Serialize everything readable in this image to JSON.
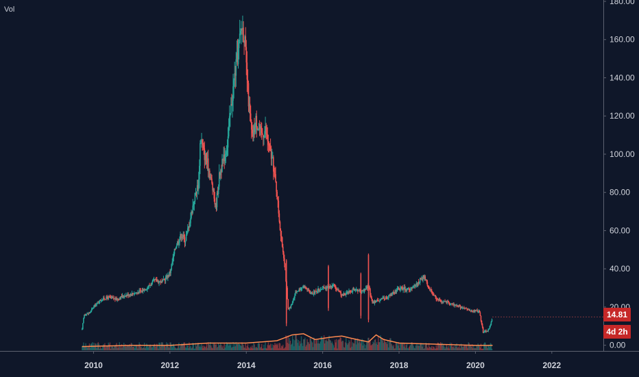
{
  "chart_data": {
    "type": "candlestick",
    "title": "",
    "volume_label": "Vol",
    "x_ticks": [
      "2010",
      "2012",
      "2014",
      "2016",
      "2018",
      "2020",
      "2022"
    ],
    "x_tick_values": [
      2010,
      2012,
      2014,
      2016,
      2018,
      2020,
      2022
    ],
    "x_range": [
      2007.55,
      2023.35
    ],
    "y_ticks": [
      "0.00",
      "20.00",
      "40.00",
      "60.00",
      "80.00",
      "100.00",
      "120.00",
      "140.00",
      "160.00",
      "180.00"
    ],
    "y_tick_values": [
      0,
      20,
      40,
      60,
      80,
      100,
      120,
      140,
      160,
      180
    ],
    "ylim": [
      -3,
      180
    ],
    "last_price": "14.81",
    "time_remaining": "4d 2h",
    "colors": {
      "background": "#0f1729",
      "up": "#26a69a",
      "down": "#ef5350",
      "ma_line": "#ff8a50",
      "badge": "#c62828",
      "axis_text": "#d1d4dc"
    },
    "price_path": [
      [
        2009.7,
        8
      ],
      [
        2009.75,
        16
      ],
      [
        2009.9,
        17
      ],
      [
        2010.0,
        20
      ],
      [
        2010.2,
        24
      ],
      [
        2010.4,
        25
      ],
      [
        2010.6,
        24
      ],
      [
        2010.8,
        26
      ],
      [
        2011.0,
        27
      ],
      [
        2011.2,
        28
      ],
      [
        2011.4,
        30
      ],
      [
        2011.6,
        34
      ],
      [
        2011.8,
        33
      ],
      [
        2012.0,
        38
      ],
      [
        2012.15,
        52
      ],
      [
        2012.3,
        58
      ],
      [
        2012.4,
        55
      ],
      [
        2012.5,
        63
      ],
      [
        2012.65,
        78
      ],
      [
        2012.75,
        85
      ],
      [
        2012.8,
        110
      ],
      [
        2012.9,
        100
      ],
      [
        2013.0,
        94
      ],
      [
        2013.1,
        84
      ],
      [
        2013.2,
        72
      ],
      [
        2013.3,
        90
      ],
      [
        2013.4,
        97
      ],
      [
        2013.5,
        105
      ],
      [
        2013.6,
        125
      ],
      [
        2013.7,
        142
      ],
      [
        2013.8,
        155
      ],
      [
        2013.88,
        168
      ],
      [
        2013.95,
        162
      ],
      [
        2014.05,
        130
      ],
      [
        2014.15,
        108
      ],
      [
        2014.25,
        118
      ],
      [
        2014.4,
        110
      ],
      [
        2014.5,
        113
      ],
      [
        2014.6,
        103
      ],
      [
        2014.7,
        95
      ],
      [
        2014.8,
        80
      ],
      [
        2014.9,
        58
      ],
      [
        2015.0,
        44
      ],
      [
        2015.1,
        18
      ],
      [
        2015.2,
        22
      ],
      [
        2015.3,
        28
      ],
      [
        2015.5,
        31
      ],
      [
        2015.7,
        27
      ],
      [
        2016.0,
        30
      ],
      [
        2016.3,
        31
      ],
      [
        2016.5,
        26
      ],
      [
        2016.8,
        29
      ],
      [
        2017.0,
        28
      ],
      [
        2017.2,
        31
      ],
      [
        2017.3,
        22
      ],
      [
        2017.5,
        24
      ],
      [
        2017.7,
        25
      ],
      [
        2018.0,
        30
      ],
      [
        2018.3,
        29
      ],
      [
        2018.5,
        33
      ],
      [
        2018.65,
        36
      ],
      [
        2018.8,
        29
      ],
      [
        2019.0,
        24
      ],
      [
        2019.3,
        22
      ],
      [
        2019.6,
        20
      ],
      [
        2019.9,
        18
      ],
      [
        2020.1,
        18
      ],
      [
        2020.2,
        7
      ],
      [
        2020.35,
        8
      ],
      [
        2020.45,
        14.81
      ]
    ],
    "spikes": [
      {
        "x": 2015.05,
        "high": 45,
        "low": 10
      },
      {
        "x": 2016.15,
        "high": 42,
        "low": 18
      },
      {
        "x": 2017.0,
        "high": 38,
        "low": 14
      },
      {
        "x": 2017.2,
        "high": 48,
        "low": 12
      }
    ],
    "volume_ma": [
      [
        2009.7,
        1
      ],
      [
        2011.0,
        1.5
      ],
      [
        2012.0,
        1.5
      ],
      [
        2013.0,
        2.5
      ],
      [
        2014.0,
        2.5
      ],
      [
        2014.8,
        3.5
      ],
      [
        2015.2,
        6
      ],
      [
        2015.5,
        6.5
      ],
      [
        2015.8,
        4
      ],
      [
        2016.2,
        5
      ],
      [
        2016.5,
        5.5
      ],
      [
        2016.9,
        4
      ],
      [
        2017.2,
        3
      ],
      [
        2017.4,
        6
      ],
      [
        2017.6,
        4
      ],
      [
        2018.0,
        2.5
      ],
      [
        2019.0,
        2
      ],
      [
        2020.0,
        1.5
      ],
      [
        2020.45,
        1.5
      ]
    ]
  }
}
